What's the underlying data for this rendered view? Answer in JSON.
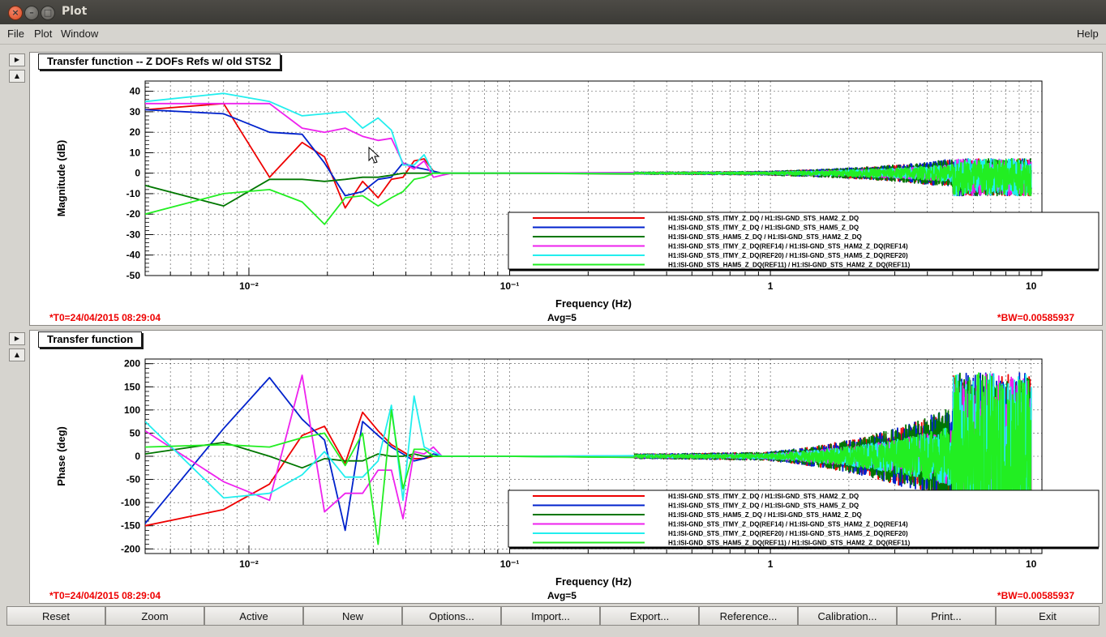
{
  "window": {
    "title": "Plot"
  },
  "menu": {
    "file": "File",
    "plot": "Plot",
    "window": "Window",
    "help": "Help"
  },
  "colors": {
    "red": "#ee0000",
    "blue": "#0022cc",
    "dark_green": "#007700",
    "magenta": "#ee22ee",
    "cyan": "#22eeee",
    "green": "#22ee22",
    "info_red": "#ee0000"
  },
  "legend_entries": [
    "H1:ISI-GND_STS_ITMY_Z_DQ / H1:ISI-GND_STS_HAM2_Z_DQ",
    "H1:ISI-GND_STS_ITMY_Z_DQ / H1:ISI-GND_STS_HAM5_Z_DQ",
    "H1:ISI-GND_STS_HAM5_Z_DQ / H1:ISI-GND_STS_HAM2_Z_DQ",
    "H1:ISI-GND_STS_ITMY_Z_DQ(REF14) / H1:ISI-GND_STS_HAM2_Z_DQ(REF14)",
    "H1:ISI-GND_STS_ITMY_Z_DQ(REF20) / H1:ISI-GND_STS_HAM5_Z_DQ(REF20)",
    "H1:ISI-GND_STS_HAM5_Z_DQ(REF11) / H1:ISI-GND_STS_HAM2_Z_DQ(REF11)"
  ],
  "chart_data": [
    {
      "type": "line",
      "title": "Transfer function -- Z DOFs Refs w/ old STS2",
      "xlabel": "Frequency (Hz)",
      "ylabel": "Magnitude (dB)",
      "x_scale": "log",
      "xlim": [
        0.004,
        11
      ],
      "ylim": [
        -50,
        45
      ],
      "x_ticks": [
        "10⁻²",
        "10⁻¹",
        "1",
        "10"
      ],
      "y_ticks": [
        "40",
        "30",
        "20",
        "10",
        "0",
        "-10",
        "-20",
        "-30",
        "-40",
        "-50"
      ],
      "grid": true,
      "legend_position": "bottom-right",
      "info_left": "*T0=24/04/2015 08:29:04",
      "info_center": "Avg=5",
      "info_right": "*BW=0.00585937",
      "series": [
        {
          "color": "#ee0000",
          "x": [
            0.004,
            0.008,
            0.012,
            0.016,
            0.0195,
            0.0234,
            0.0273,
            0.0313,
            0.0352,
            0.039,
            0.043,
            0.047,
            0.051,
            0.055,
            0.06,
            0.07,
            0.1,
            0.5,
            1,
            2,
            5,
            10
          ],
          "y": [
            31,
            34,
            -2,
            15,
            8,
            -17,
            -4,
            -12,
            -3,
            -2,
            6,
            7,
            1,
            0,
            0,
            0,
            0,
            0,
            0,
            0,
            0,
            0
          ]
        },
        {
          "color": "#0022cc",
          "x": [
            0.004,
            0.008,
            0.012,
            0.016,
            0.0195,
            0.0234,
            0.0273,
            0.0313,
            0.0352,
            0.039,
            0.043,
            0.047,
            0.051,
            0.055,
            0.06,
            0.07,
            0.1,
            0.5,
            1,
            2,
            5,
            10
          ],
          "y": [
            31,
            29,
            20,
            19,
            5,
            -11,
            -9,
            -3,
            -2,
            5,
            3,
            2,
            1,
            0,
            0,
            0,
            0,
            0,
            0,
            0,
            0,
            0
          ]
        },
        {
          "color": "#007700",
          "x": [
            0.004,
            0.008,
            0.012,
            0.016,
            0.0195,
            0.0234,
            0.0273,
            0.0313,
            0.0352,
            0.039,
            0.043,
            0.047,
            0.051,
            0.055,
            0.06,
            0.07,
            0.1,
            0.5,
            1,
            2,
            5,
            10
          ],
          "y": [
            -6,
            -16,
            -3,
            -3,
            -4,
            -3,
            -2,
            -2,
            -1,
            0,
            0,
            0,
            0,
            0,
            0,
            0,
            0,
            0,
            0,
            0,
            0,
            0
          ]
        },
        {
          "color": "#ee22ee",
          "x": [
            0.004,
            0.008,
            0.012,
            0.016,
            0.0195,
            0.0234,
            0.0273,
            0.0313,
            0.0352,
            0.039,
            0.043,
            0.047,
            0.051,
            0.055,
            0.06,
            0.07,
            0.1,
            0.5,
            1,
            2,
            5,
            10
          ],
          "y": [
            34,
            34,
            34,
            22,
            20,
            22,
            18,
            16,
            17,
            5,
            2,
            6,
            -2,
            -1,
            0,
            0,
            0,
            0,
            0,
            0,
            0,
            0
          ]
        },
        {
          "color": "#22eeee",
          "x": [
            0.004,
            0.008,
            0.012,
            0.016,
            0.0195,
            0.0234,
            0.0273,
            0.0313,
            0.0352,
            0.039,
            0.043,
            0.047,
            0.051,
            0.055,
            0.06,
            0.07,
            0.1,
            0.5,
            1,
            2,
            5,
            10
          ],
          "y": [
            35,
            39,
            35,
            28,
            29,
            30,
            22,
            27,
            21,
            4,
            4,
            9,
            0,
            0,
            0,
            0,
            0,
            0,
            0,
            0,
            0,
            0
          ]
        },
        {
          "color": "#22ee22",
          "x": [
            0.004,
            0.008,
            0.012,
            0.016,
            0.0195,
            0.0234,
            0.0273,
            0.0313,
            0.0352,
            0.039,
            0.043,
            0.047,
            0.051,
            0.055,
            0.06,
            0.07,
            0.1,
            0.5,
            1,
            2,
            5,
            10
          ],
          "y": [
            -20,
            -10,
            -8,
            -14,
            -25,
            -12,
            -11,
            -16,
            -12,
            -9,
            -3,
            -2,
            0,
            0,
            0,
            0,
            0,
            0,
            0,
            0,
            0,
            0
          ]
        }
      ]
    },
    {
      "type": "line",
      "title": "Transfer function",
      "xlabel": "Frequency (Hz)",
      "ylabel": "Phase (deg)",
      "x_scale": "log",
      "xlim": [
        0.004,
        11
      ],
      "ylim": [
        -210,
        210
      ],
      "x_ticks": [
        "10⁻²",
        "10⁻¹",
        "1",
        "10"
      ],
      "y_ticks": [
        "200",
        "150",
        "100",
        "50",
        "0",
        "-50",
        "-100",
        "-150",
        "-200"
      ],
      "grid": true,
      "legend_position": "bottom-right",
      "info_left": "*T0=24/04/2015 08:29:04",
      "info_center": "Avg=5",
      "info_right": "*BW=0.00585937",
      "series": [
        {
          "color": "#ee0000",
          "x": [
            0.004,
            0.008,
            0.012,
            0.016,
            0.0195,
            0.0234,
            0.0273,
            0.0313,
            0.0352,
            0.039,
            0.043,
            0.047,
            0.051,
            0.055,
            0.06,
            0.07,
            0.1,
            0.5,
            1,
            2,
            5,
            10
          ],
          "y": [
            -150,
            -115,
            -60,
            45,
            65,
            -15,
            95,
            55,
            25,
            10,
            -5,
            -5,
            0,
            0,
            0,
            0,
            0,
            0,
            0,
            0,
            0,
            0
          ]
        },
        {
          "color": "#0022cc",
          "x": [
            0.004,
            0.008,
            0.012,
            0.016,
            0.0195,
            0.0234,
            0.0273,
            0.0313,
            0.0352,
            0.039,
            0.043,
            0.047,
            0.051,
            0.055,
            0.06,
            0.07,
            0.1,
            0.5,
            1,
            2,
            5,
            10
          ],
          "y": [
            -145,
            60,
            170,
            80,
            35,
            -160,
            75,
            45,
            20,
            5,
            -10,
            -5,
            5,
            0,
            0,
            0,
            0,
            0,
            0,
            0,
            0,
            0
          ]
        },
        {
          "color": "#007700",
          "x": [
            0.004,
            0.008,
            0.012,
            0.016,
            0.0195,
            0.0234,
            0.0273,
            0.0313,
            0.0352,
            0.039,
            0.043,
            0.047,
            0.051,
            0.055,
            0.06,
            0.07,
            0.1,
            0.5,
            1,
            2,
            5,
            10
          ],
          "y": [
            5,
            30,
            0,
            -25,
            -5,
            -10,
            -10,
            5,
            0,
            0,
            5,
            0,
            0,
            0,
            0,
            0,
            0,
            0,
            0,
            0,
            0,
            0
          ]
        },
        {
          "color": "#ee22ee",
          "x": [
            0.004,
            0.008,
            0.012,
            0.016,
            0.0195,
            0.0234,
            0.0273,
            0.0313,
            0.0352,
            0.039,
            0.043,
            0.047,
            0.051,
            0.055,
            0.06,
            0.07,
            0.1,
            0.5,
            1,
            2,
            5,
            10
          ],
          "y": [
            55,
            -55,
            -95,
            175,
            -120,
            -80,
            -80,
            -30,
            -30,
            -135,
            10,
            5,
            20,
            0,
            0,
            0,
            0,
            0,
            0,
            0,
            0,
            0
          ]
        },
        {
          "color": "#22eeee",
          "x": [
            0.004,
            0.008,
            0.012,
            0.016,
            0.0195,
            0.0234,
            0.0273,
            0.0313,
            0.0352,
            0.039,
            0.043,
            0.047,
            0.051,
            0.055,
            0.06,
            0.07,
            0.1,
            0.5,
            1,
            2,
            5,
            10
          ],
          "y": [
            75,
            -90,
            -80,
            -40,
            10,
            -45,
            -45,
            -10,
            110,
            -95,
            130,
            20,
            10,
            0,
            0,
            0,
            0,
            0,
            0,
            0,
            0,
            0
          ]
        },
        {
          "color": "#22ee22",
          "x": [
            0.004,
            0.008,
            0.012,
            0.016,
            0.0195,
            0.0234,
            0.0273,
            0.0313,
            0.0352,
            0.039,
            0.043,
            0.047,
            0.051,
            0.055,
            0.06,
            0.07,
            0.1,
            0.5,
            1,
            2,
            5,
            10
          ],
          "y": [
            20,
            25,
            20,
            40,
            50,
            -20,
            50,
            -190,
            100,
            -70,
            15,
            15,
            0,
            0,
            0,
            0,
            0,
            0,
            0,
            0,
            0,
            0
          ]
        }
      ]
    }
  ],
  "buttons": [
    "Reset",
    "Zoom",
    "Active",
    "New",
    "Options...",
    "Import...",
    "Export...",
    "Reference...",
    "Calibration...",
    "Print...",
    "Exit"
  ]
}
